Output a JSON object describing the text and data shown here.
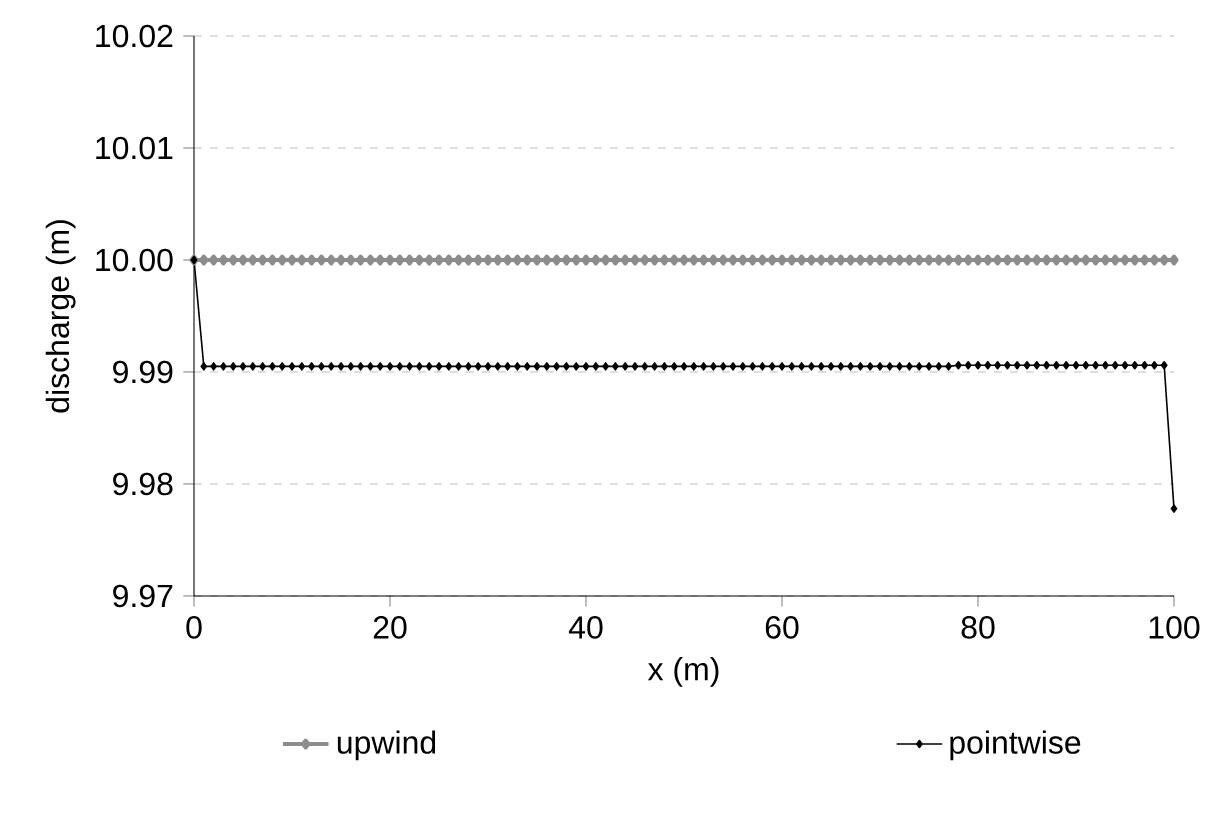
{
  "chart_data": {
    "type": "line",
    "xlabel": "x (m)",
    "ylabel": "discharge (m)",
    "x": [
      0,
      1,
      2,
      3,
      4,
      5,
      6,
      7,
      8,
      9,
      10,
      11,
      12,
      13,
      14,
      15,
      16,
      17,
      18,
      19,
      20,
      21,
      22,
      23,
      24,
      25,
      26,
      27,
      28,
      29,
      30,
      31,
      32,
      33,
      34,
      35,
      36,
      37,
      38,
      39,
      40,
      41,
      42,
      43,
      44,
      45,
      46,
      47,
      48,
      49,
      50,
      51,
      52,
      53,
      54,
      55,
      56,
      57,
      58,
      59,
      60,
      61,
      62,
      63,
      64,
      65,
      66,
      67,
      68,
      69,
      70,
      71,
      72,
      73,
      74,
      75,
      76,
      77,
      78,
      79,
      80,
      81,
      82,
      83,
      84,
      85,
      86,
      87,
      88,
      89,
      90,
      91,
      92,
      93,
      94,
      95,
      96,
      97,
      98,
      99,
      100
    ],
    "series": [
      {
        "name": "upwind",
        "color": "#8c8c8c",
        "values": [
          10.0,
          10.0,
          10.0,
          10.0,
          10.0,
          10.0,
          10.0,
          10.0,
          10.0,
          10.0,
          10.0,
          10.0,
          10.0,
          10.0,
          10.0,
          10.0,
          10.0,
          10.0,
          10.0,
          10.0,
          10.0,
          10.0,
          10.0,
          10.0,
          10.0,
          10.0,
          10.0,
          10.0,
          10.0,
          10.0,
          10.0,
          10.0,
          10.0,
          10.0,
          10.0,
          10.0,
          10.0,
          10.0,
          10.0,
          10.0,
          10.0,
          10.0,
          10.0,
          10.0,
          10.0,
          10.0,
          10.0,
          10.0,
          10.0,
          10.0,
          10.0,
          10.0,
          10.0,
          10.0,
          10.0,
          10.0,
          10.0,
          10.0,
          10.0,
          10.0,
          10.0,
          10.0,
          10.0,
          10.0,
          10.0,
          10.0,
          10.0,
          10.0,
          10.0,
          10.0,
          10.0,
          10.0,
          10.0,
          10.0,
          10.0,
          10.0,
          10.0,
          10.0,
          10.0,
          10.0,
          10.0,
          10.0,
          10.0,
          10.0,
          10.0,
          10.0,
          10.0,
          10.0,
          10.0,
          10.0,
          10.0,
          10.0,
          10.0,
          10.0,
          10.0,
          10.0,
          10.0,
          10.0,
          10.0,
          10.0,
          10.0
        ]
      },
      {
        "name": "pointwise",
        "color": "#000000",
        "values": [
          10.0,
          9.9905,
          9.9905,
          9.9905,
          9.9905,
          9.9905,
          9.9905,
          9.9905,
          9.9905,
          9.9905,
          9.9905,
          9.9905,
          9.9905,
          9.9905,
          9.9905,
          9.9905,
          9.9905,
          9.9905,
          9.9905,
          9.9905,
          9.9905,
          9.9905,
          9.9905,
          9.9905,
          9.9905,
          9.9905,
          9.9905,
          9.9905,
          9.9905,
          9.9905,
          9.9905,
          9.9905,
          9.9905,
          9.9905,
          9.9905,
          9.9905,
          9.9905,
          9.9905,
          9.9905,
          9.9905,
          9.9905,
          9.9905,
          9.9905,
          9.9905,
          9.9905,
          9.9905,
          9.9905,
          9.9905,
          9.9905,
          9.9905,
          9.9905,
          9.9905,
          9.9905,
          9.9905,
          9.9905,
          9.9905,
          9.9905,
          9.9905,
          9.9905,
          9.9905,
          9.9905,
          9.9905,
          9.9905,
          9.9905,
          9.9905,
          9.9905,
          9.9905,
          9.9905,
          9.9905,
          9.9905,
          9.9905,
          9.9905,
          9.9905,
          9.9905,
          9.9905,
          9.9905,
          9.9905,
          9.9905,
          9.9906,
          9.9906,
          9.9906,
          9.9906,
          9.9906,
          9.9906,
          9.9906,
          9.9906,
          9.9906,
          9.9906,
          9.9906,
          9.9906,
          9.9906,
          9.9906,
          9.9906,
          9.9906,
          9.9906,
          9.9906,
          9.9906,
          9.9906,
          9.9906,
          9.9906,
          9.9778
        ]
      }
    ],
    "xlim": [
      0,
      100
    ],
    "xticks": [
      0,
      20,
      40,
      60,
      80,
      100
    ],
    "ylim": [
      9.97,
      10.02
    ],
    "yticks": [
      {
        "value": 9.97,
        "label": "9.97"
      },
      {
        "value": 9.98,
        "label": "9.98"
      },
      {
        "value": 9.99,
        "label": "9.99"
      },
      {
        "value": 10.0,
        "label": "10.00"
      },
      {
        "value": 10.01,
        "label": "10.01"
      },
      {
        "value": 10.02,
        "label": "10.02"
      }
    ],
    "grid": "y",
    "legend": "bottom",
    "marker": "diamond",
    "line_style": "solid"
  }
}
